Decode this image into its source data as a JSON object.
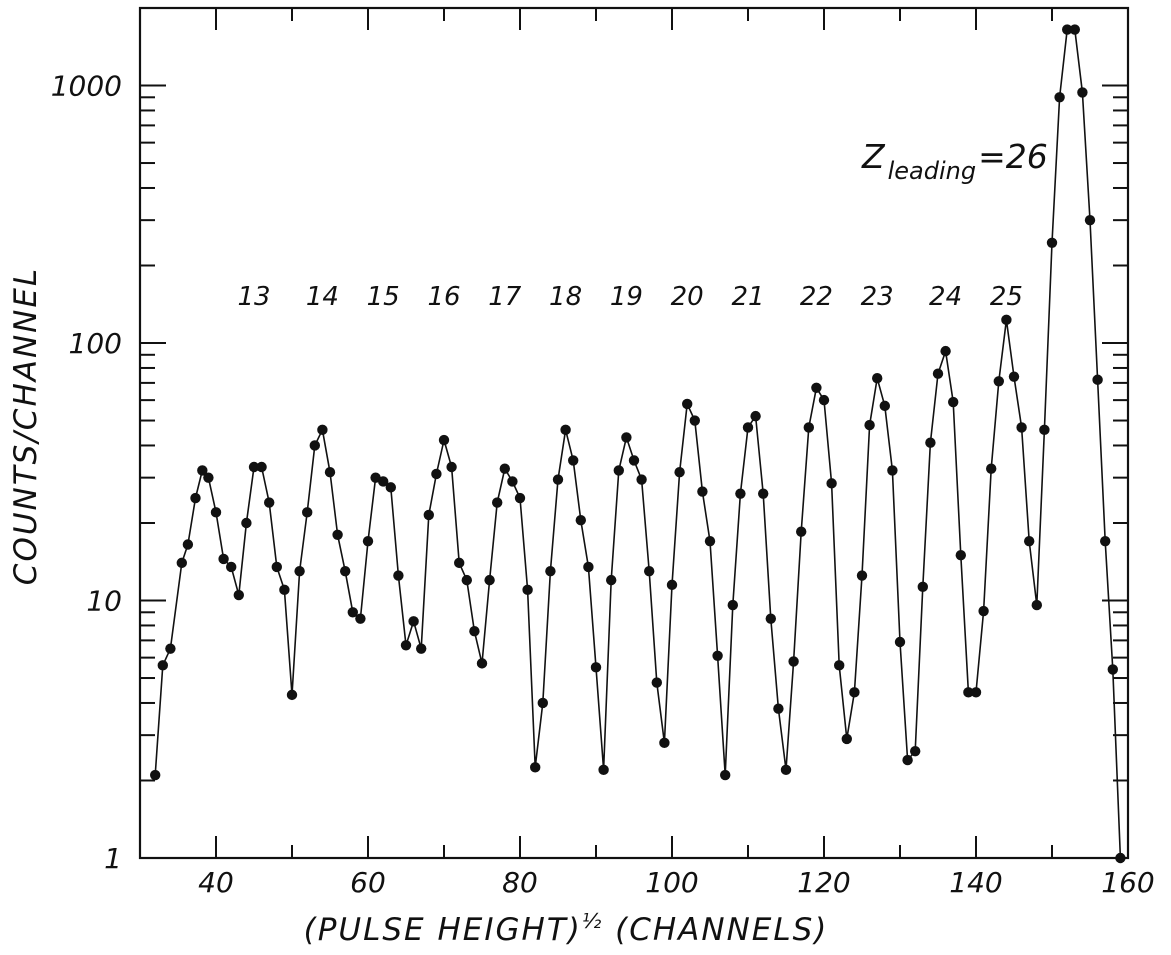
{
  "chart_data": {
    "type": "scatter",
    "connected": true,
    "xlabel": "(PULSE HEIGHT)½ (CHANNELS)",
    "xlabel_main": "(PULSE HEIGHT)",
    "xlabel_exp": "½",
    "xlabel_tail": " (CHANNELS)",
    "ylabel": "COUNTS/CHANNEL",
    "xlim": [
      30,
      160
    ],
    "ylim": [
      1,
      2000
    ],
    "yscale": "log",
    "grid": false,
    "x_ticks": [
      40,
      60,
      80,
      100,
      120,
      140,
      160
    ],
    "x_tick_labels": [
      "40",
      "60",
      "80",
      "100",
      "120",
      "140",
      "160"
    ],
    "y_ticks": [
      1,
      10,
      100,
      1000
    ],
    "y_tick_labels": [
      "1",
      "10",
      "100",
      "1000"
    ],
    "annotation": {
      "z_symbol": "Z",
      "z_subscript": "leading",
      "z_value": "=26"
    },
    "peak_labels": [
      {
        "text": "13",
        "x": 45
      },
      {
        "text": "14",
        "x": 54
      },
      {
        "text": "15",
        "x": 62
      },
      {
        "text": "16",
        "x": 70
      },
      {
        "text": "17",
        "x": 78
      },
      {
        "text": "18",
        "x": 86
      },
      {
        "text": "19",
        "x": 94
      },
      {
        "text": "20",
        "x": 102
      },
      {
        "text": "21",
        "x": 110
      },
      {
        "text": "22",
        "x": 119
      },
      {
        "text": "23",
        "x": 127
      },
      {
        "text": "24",
        "x": 136
      },
      {
        "text": "25",
        "x": 144
      }
    ],
    "series": [
      {
        "points": [
          [
            32,
            2.1
          ],
          [
            33,
            5.6
          ],
          [
            34,
            6.5
          ],
          [
            35.5,
            14
          ],
          [
            36.3,
            16.5
          ],
          [
            37.3,
            25
          ],
          [
            38.2,
            32
          ],
          [
            39,
            30
          ],
          [
            40,
            22
          ],
          [
            41,
            14.5
          ],
          [
            42,
            13.5
          ],
          [
            43,
            10.5
          ],
          [
            44,
            20
          ],
          [
            45,
            33
          ],
          [
            46,
            33
          ],
          [
            47,
            24
          ],
          [
            48,
            13.5
          ],
          [
            49,
            11
          ],
          [
            50,
            4.3
          ],
          [
            51,
            13
          ],
          [
            52,
            22
          ],
          [
            53,
            40
          ],
          [
            54,
            46
          ],
          [
            55,
            31.5
          ],
          [
            56,
            18
          ],
          [
            57,
            13
          ],
          [
            58,
            9
          ],
          [
            59,
            8.5
          ],
          [
            60,
            17
          ],
          [
            61,
            30
          ],
          [
            62,
            29
          ],
          [
            63,
            27.5
          ],
          [
            64,
            12.5
          ],
          [
            65,
            6.7
          ],
          [
            66,
            8.3
          ],
          [
            67,
            6.5
          ],
          [
            68,
            21.5
          ],
          [
            69,
            31
          ],
          [
            70,
            42
          ],
          [
            71,
            33
          ],
          [
            72,
            14
          ],
          [
            73,
            12
          ],
          [
            74,
            7.6
          ],
          [
            75,
            5.7
          ],
          [
            76,
            12
          ],
          [
            77,
            24
          ],
          [
            78,
            32.5
          ],
          [
            79,
            29
          ],
          [
            80,
            25
          ],
          [
            81,
            11
          ],
          [
            82,
            2.25
          ],
          [
            83,
            4
          ],
          [
            84,
            13
          ],
          [
            85,
            29.5
          ],
          [
            86,
            46
          ],
          [
            87,
            35
          ],
          [
            88,
            20.5
          ],
          [
            89,
            13.5
          ],
          [
            90,
            5.5
          ],
          [
            91,
            2.2
          ],
          [
            92,
            12
          ],
          [
            93,
            32
          ],
          [
            94,
            43
          ],
          [
            95,
            35
          ],
          [
            96,
            29.5
          ],
          [
            97,
            13
          ],
          [
            98,
            4.8
          ],
          [
            99,
            2.8
          ],
          [
            100,
            11.5
          ],
          [
            101,
            31.5
          ],
          [
            102,
            58
          ],
          [
            103,
            50
          ],
          [
            104,
            26.5
          ],
          [
            105,
            17
          ],
          [
            106,
            6.1
          ],
          [
            107,
            2.1
          ],
          [
            108,
            9.6
          ],
          [
            109,
            26
          ],
          [
            110,
            47
          ],
          [
            111,
            52
          ],
          [
            112,
            26
          ],
          [
            113,
            8.5
          ],
          [
            114,
            3.8
          ],
          [
            115,
            2.2
          ],
          [
            116,
            5.8
          ],
          [
            117,
            18.5
          ],
          [
            118,
            47
          ],
          [
            119,
            67
          ],
          [
            120,
            60
          ],
          [
            121,
            28.5
          ],
          [
            122,
            5.6
          ],
          [
            123,
            2.9
          ],
          [
            124,
            4.4
          ],
          [
            125,
            12.5
          ],
          [
            126,
            48
          ],
          [
            127,
            73
          ],
          [
            128,
            57
          ],
          [
            129,
            32
          ],
          [
            130,
            6.9
          ],
          [
            131,
            2.4
          ],
          [
            132,
            2.6
          ],
          [
            133,
            11.3
          ],
          [
            134,
            41
          ],
          [
            135,
            76
          ],
          [
            136,
            93
          ],
          [
            137,
            59
          ],
          [
            138,
            15
          ],
          [
            139,
            4.4
          ],
          [
            140,
            4.4
          ],
          [
            141,
            9.1
          ],
          [
            142,
            32.5
          ],
          [
            143,
            71
          ],
          [
            144,
            123
          ],
          [
            145,
            74
          ],
          [
            146,
            47
          ],
          [
            147,
            17
          ],
          [
            148,
            9.6
          ],
          [
            149,
            46
          ],
          [
            150,
            245
          ],
          [
            151,
            900
          ],
          [
            152,
            1650
          ],
          [
            153,
            1650
          ],
          [
            154,
            940
          ],
          [
            155,
            300
          ],
          [
            156,
            72
          ],
          [
            157,
            17
          ],
          [
            158,
            5.4
          ],
          [
            159,
            1
          ]
        ]
      }
    ]
  }
}
